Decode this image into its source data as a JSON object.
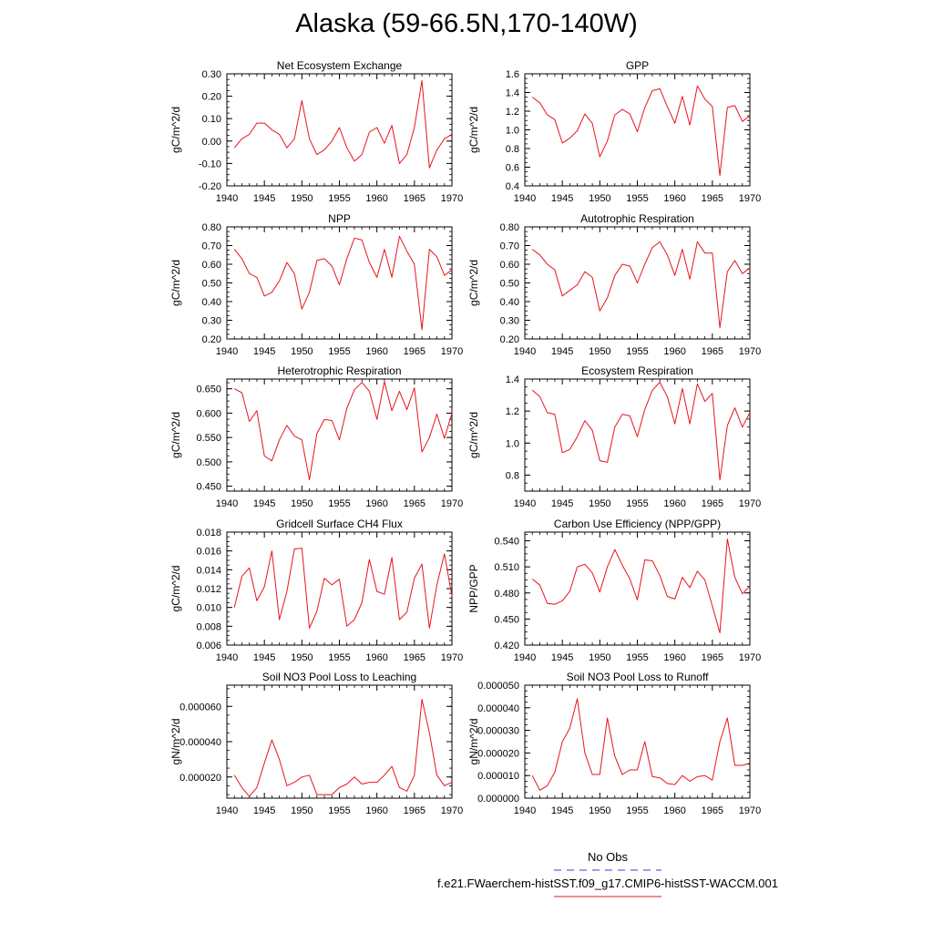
{
  "page": {
    "title": "Alaska (59-66.5N,170-140W)"
  },
  "legend": {
    "entries": [
      {
        "label": "No Obs",
        "color": "#3b3bd0",
        "style": "dashed"
      },
      {
        "label": "f.e21.FWaerchem-histSST.f09_g17.CMIP6-histSST-WACCM.001",
        "color": "#e8131b",
        "style": "solid"
      }
    ]
  },
  "chart_data": [
    {
      "type": "line",
      "title": "Net Ecosystem Exchange",
      "ylabel": "gC/m^2/d",
      "xlim": [
        1940,
        1970
      ],
      "ylim": [
        -0.2,
        0.3
      ],
      "xticks": [
        1940,
        1945,
        1950,
        1955,
        1960,
        1965,
        1970
      ],
      "yticks": [
        "-0.20",
        "-0.10",
        "0.00",
        "0.10",
        "0.20",
        "0.30"
      ],
      "series": [
        {
          "color": "#e8131b",
          "x": [
            1941,
            1942,
            1943,
            1944,
            1945,
            1946,
            1947,
            1948,
            1949,
            1950,
            1951,
            1952,
            1953,
            1954,
            1955,
            1956,
            1957,
            1958,
            1959,
            1960,
            1961,
            1962,
            1963,
            1964,
            1965,
            1966,
            1967,
            1968,
            1969,
            1970
          ],
          "y": [
            -0.03,
            0.01,
            0.03,
            0.08,
            0.08,
            0.05,
            0.03,
            -0.03,
            0.01,
            0.18,
            0.01,
            -0.06,
            -0.04,
            0.0,
            0.06,
            -0.03,
            -0.09,
            -0.06,
            0.04,
            0.06,
            -0.01,
            0.07,
            -0.1,
            -0.06,
            0.06,
            0.27,
            -0.12,
            -0.04,
            0.01,
            0.03
          ]
        }
      ]
    },
    {
      "type": "line",
      "title": "GPP",
      "ylabel": "gC/m^2/d",
      "xlim": [
        1940,
        1970
      ],
      "ylim": [
        0.4,
        1.6
      ],
      "xticks": [
        1940,
        1945,
        1950,
        1955,
        1960,
        1965,
        1970
      ],
      "yticks": [
        "0.4",
        "0.6",
        "0.8",
        "1.0",
        "1.2",
        "1.4",
        "1.6"
      ],
      "series": [
        {
          "color": "#e8131b",
          "x": [
            1941,
            1942,
            1943,
            1944,
            1945,
            1946,
            1947,
            1948,
            1949,
            1950,
            1951,
            1952,
            1953,
            1954,
            1955,
            1956,
            1957,
            1958,
            1959,
            1960,
            1961,
            1962,
            1963,
            1964,
            1965,
            1966,
            1967,
            1968,
            1969,
            1970
          ],
          "y": [
            1.35,
            1.29,
            1.16,
            1.11,
            0.86,
            0.91,
            0.99,
            1.17,
            1.07,
            0.71,
            0.88,
            1.16,
            1.22,
            1.17,
            0.98,
            1.24,
            1.42,
            1.44,
            1.25,
            1.07,
            1.36,
            1.05,
            1.47,
            1.33,
            1.25,
            0.51,
            1.24,
            1.26,
            1.09,
            1.15
          ]
        }
      ]
    },
    {
      "type": "line",
      "title": "NPP",
      "ylabel": "gC/m^2/d",
      "xlim": [
        1940,
        1970
      ],
      "ylim": [
        0.2,
        0.8
      ],
      "xticks": [
        1940,
        1945,
        1950,
        1955,
        1960,
        1965,
        1970
      ],
      "yticks": [
        "0.20",
        "0.30",
        "0.40",
        "0.50",
        "0.60",
        "0.70",
        "0.80"
      ],
      "series": [
        {
          "color": "#e8131b",
          "x": [
            1941,
            1942,
            1943,
            1944,
            1945,
            1946,
            1947,
            1948,
            1949,
            1950,
            1951,
            1952,
            1953,
            1954,
            1955,
            1956,
            1957,
            1958,
            1959,
            1960,
            1961,
            1962,
            1963,
            1964,
            1965,
            1966,
            1967,
            1968,
            1969,
            1970
          ],
          "y": [
            0.68,
            0.63,
            0.55,
            0.53,
            0.43,
            0.45,
            0.51,
            0.61,
            0.55,
            0.36,
            0.45,
            0.62,
            0.63,
            0.59,
            0.49,
            0.63,
            0.74,
            0.73,
            0.61,
            0.53,
            0.68,
            0.53,
            0.75,
            0.67,
            0.6,
            0.25,
            0.68,
            0.64,
            0.54,
            0.57
          ]
        }
      ]
    },
    {
      "type": "line",
      "title": "Autotrophic Respiration",
      "ylabel": "gC/m^2/d",
      "xlim": [
        1940,
        1970
      ],
      "ylim": [
        0.2,
        0.8
      ],
      "xticks": [
        1940,
        1945,
        1950,
        1955,
        1960,
        1965,
        1970
      ],
      "yticks": [
        "0.20",
        "0.30",
        "0.40",
        "0.50",
        "0.60",
        "0.70",
        "0.80"
      ],
      "series": [
        {
          "color": "#e8131b",
          "x": [
            1941,
            1942,
            1943,
            1944,
            1945,
            1946,
            1947,
            1948,
            1949,
            1950,
            1951,
            1952,
            1953,
            1954,
            1955,
            1956,
            1957,
            1958,
            1959,
            1960,
            1961,
            1962,
            1963,
            1964,
            1965,
            1966,
            1967,
            1968,
            1969,
            1970
          ],
          "y": [
            0.68,
            0.65,
            0.6,
            0.57,
            0.43,
            0.46,
            0.49,
            0.56,
            0.53,
            0.35,
            0.42,
            0.54,
            0.6,
            0.59,
            0.5,
            0.6,
            0.69,
            0.72,
            0.65,
            0.54,
            0.68,
            0.52,
            0.72,
            0.66,
            0.66,
            0.26,
            0.56,
            0.62,
            0.55,
            0.58
          ]
        }
      ]
    },
    {
      "type": "line",
      "title": "Heterotrophic Respiration",
      "ylabel": "gC/m^2/d",
      "xlim": [
        1940,
        1970
      ],
      "ylim": [
        0.44,
        0.67
      ],
      "xticks": [
        1940,
        1945,
        1950,
        1955,
        1960,
        1965,
        1970
      ],
      "yticks": [
        "0.450",
        "0.500",
        "0.550",
        "0.600",
        "0.650"
      ],
      "series": [
        {
          "color": "#e8131b",
          "x": [
            1941,
            1942,
            1943,
            1944,
            1945,
            1946,
            1947,
            1948,
            1949,
            1950,
            1951,
            1952,
            1953,
            1954,
            1955,
            1956,
            1957,
            1958,
            1959,
            1960,
            1961,
            1962,
            1963,
            1964,
            1965,
            1966,
            1967,
            1968,
            1969,
            1970
          ],
          "y": [
            0.65,
            0.642,
            0.583,
            0.605,
            0.512,
            0.502,
            0.545,
            0.575,
            0.553,
            0.545,
            0.463,
            0.558,
            0.587,
            0.585,
            0.545,
            0.61,
            0.648,
            0.663,
            0.645,
            0.587,
            0.665,
            0.605,
            0.645,
            0.607,
            0.652,
            0.52,
            0.55,
            0.598,
            0.548,
            0.6
          ]
        }
      ]
    },
    {
      "type": "line",
      "title": "Ecosystem Respiration",
      "ylabel": "gC/m^2/d",
      "xlim": [
        1940,
        1970
      ],
      "ylim": [
        0.7,
        1.4
      ],
      "xticks": [
        1940,
        1945,
        1950,
        1955,
        1960,
        1965,
        1970
      ],
      "yticks": [
        "0.8",
        "1.0",
        "1.2",
        "1.4"
      ],
      "series": [
        {
          "color": "#e8131b",
          "x": [
            1941,
            1942,
            1943,
            1944,
            1945,
            1946,
            1947,
            1948,
            1949,
            1950,
            1951,
            1952,
            1953,
            1954,
            1955,
            1956,
            1957,
            1958,
            1959,
            1960,
            1961,
            1962,
            1963,
            1964,
            1965,
            1966,
            1967,
            1968,
            1969,
            1970
          ],
          "y": [
            1.33,
            1.29,
            1.19,
            1.18,
            0.94,
            0.96,
            1.04,
            1.14,
            1.08,
            0.89,
            0.88,
            1.1,
            1.18,
            1.17,
            1.04,
            1.21,
            1.33,
            1.38,
            1.29,
            1.12,
            1.34,
            1.12,
            1.37,
            1.26,
            1.31,
            0.77,
            1.11,
            1.22,
            1.1,
            1.19
          ]
        }
      ]
    },
    {
      "type": "line",
      "title": "Gridcell Surface CH4 Flux",
      "ylabel": "gC/m^2/d",
      "xlim": [
        1940,
        1970
      ],
      "ylim": [
        0.006,
        0.018
      ],
      "xticks": [
        1940,
        1945,
        1950,
        1955,
        1960,
        1965,
        1970
      ],
      "yticks": [
        "0.006",
        "0.008",
        "0.010",
        "0.012",
        "0.014",
        "0.016",
        "0.018"
      ],
      "series": [
        {
          "color": "#e8131b",
          "x": [
            1941,
            1942,
            1943,
            1944,
            1945,
            1946,
            1947,
            1948,
            1949,
            1950,
            1951,
            1952,
            1953,
            1954,
            1955,
            1956,
            1957,
            1958,
            1959,
            1960,
            1961,
            1962,
            1963,
            1964,
            1965,
            1966,
            1967,
            1968,
            1969,
            1970
          ],
          "y": [
            0.01,
            0.0133,
            0.0142,
            0.0107,
            0.0122,
            0.016,
            0.0087,
            0.0117,
            0.0162,
            0.0163,
            0.0078,
            0.0096,
            0.0131,
            0.0124,
            0.013,
            0.008,
            0.0087,
            0.0105,
            0.0151,
            0.0117,
            0.0114,
            0.0153,
            0.0087,
            0.0095,
            0.0131,
            0.0146,
            0.0078,
            0.0124,
            0.0157,
            0.0112
          ]
        }
      ]
    },
    {
      "type": "line",
      "title": "Carbon Use Efficiency (NPP/GPP)",
      "ylabel": "NPP/GPP",
      "xlim": [
        1940,
        1970
      ],
      "ylim": [
        0.42,
        0.55
      ],
      "xticks": [
        1940,
        1945,
        1950,
        1955,
        1960,
        1965,
        1970
      ],
      "yticks": [
        "0.420",
        "0.450",
        "0.480",
        "0.510",
        "0.540"
      ],
      "series": [
        {
          "color": "#e8131b",
          "x": [
            1941,
            1942,
            1943,
            1944,
            1945,
            1946,
            1947,
            1948,
            1949,
            1950,
            1951,
            1952,
            1953,
            1954,
            1955,
            1956,
            1957,
            1958,
            1959,
            1960,
            1961,
            1962,
            1963,
            1964,
            1965,
            1966,
            1967,
            1968,
            1969,
            1970
          ],
          "y": [
            0.496,
            0.489,
            0.468,
            0.467,
            0.471,
            0.482,
            0.51,
            0.513,
            0.503,
            0.481,
            0.51,
            0.53,
            0.512,
            0.496,
            0.472,
            0.518,
            0.517,
            0.5,
            0.476,
            0.473,
            0.498,
            0.486,
            0.505,
            0.495,
            0.465,
            0.434,
            0.542,
            0.498,
            0.479,
            0.488
          ]
        }
      ]
    },
    {
      "type": "line",
      "title": "Soil NO3 Pool Loss to Leaching",
      "ylabel": "gN/m^2/d",
      "xlim": [
        1940,
        1970
      ],
      "ylim": [
        8e-06,
        7.2e-05
      ],
      "xticks": [
        1940,
        1945,
        1950,
        1955,
        1960,
        1965,
        1970
      ],
      "yticks": [
        "0.000020",
        "0.000040",
        "0.000060"
      ],
      "series": [
        {
          "color": "#e8131b",
          "x": [
            1941,
            1942,
            1943,
            1944,
            1945,
            1946,
            1947,
            1948,
            1949,
            1950,
            1951,
            1952,
            1953,
            1954,
            1955,
            1956,
            1957,
            1958,
            1959,
            1960,
            1961,
            1962,
            1963,
            1964,
            1965,
            1966,
            1967,
            1968,
            1969,
            1970
          ],
          "y": [
            2.1e-05,
            1.4e-05,
            9e-06,
            1.4e-05,
            2.8e-05,
            4.1e-05,
            3e-05,
            1.5e-05,
            1.7e-05,
            2e-05,
            2.1e-05,
            1e-05,
            1e-05,
            1e-05,
            1.4e-05,
            1.6e-05,
            2e-05,
            1.6e-05,
            1.7e-05,
            1.7e-05,
            2.1e-05,
            2.6e-05,
            1.4e-05,
            1.2e-05,
            2.1e-05,
            6.4e-05,
            4.5e-05,
            2.1e-05,
            1.5e-05,
            1.7e-05
          ]
        }
      ]
    },
    {
      "type": "line",
      "title": "Soil NO3 Pool Loss to Runoff",
      "ylabel": "gN/m^2/d",
      "xlim": [
        1940,
        1970
      ],
      "ylim": [
        0.0,
        5e-05
      ],
      "xticks": [
        1940,
        1945,
        1950,
        1955,
        1960,
        1965,
        1970
      ],
      "yticks": [
        "0.000000",
        "0.000010",
        "0.000020",
        "0.000030",
        "0.000040",
        "0.000050"
      ],
      "series": [
        {
          "color": "#e8131b",
          "x": [
            1941,
            1942,
            1943,
            1944,
            1945,
            1946,
            1947,
            1948,
            1949,
            1950,
            1951,
            1952,
            1953,
            1954,
            1955,
            1956,
            1957,
            1958,
            1959,
            1960,
            1961,
            1962,
            1963,
            1964,
            1965,
            1966,
            1967,
            1968,
            1969,
            1970
          ],
          "y": [
            1e-05,
            3.5e-06,
            5.5e-06,
            1.15e-05,
            2.5e-05,
            3.1e-05,
            4.4e-05,
            2e-05,
            1.05e-05,
            1.05e-05,
            3.55e-05,
            1.85e-05,
            1.05e-05,
            1.25e-05,
            1.25e-05,
            2.5e-05,
            9.5e-06,
            9e-06,
            6.5e-06,
            6e-06,
            1e-05,
            7.5e-06,
            9.5e-06,
            1e-05,
            8e-06,
            2.5e-05,
            3.55e-05,
            1.45e-05,
            1.45e-05,
            1.55e-05
          ]
        }
      ]
    }
  ]
}
